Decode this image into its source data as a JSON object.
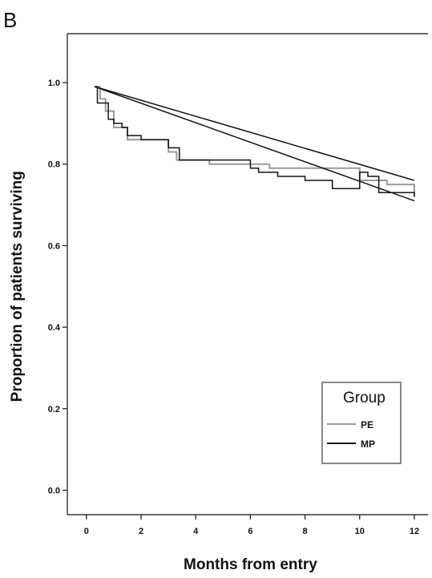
{
  "panel_label": "B",
  "colors": {
    "PE": "#9a9a9a",
    "MP": "#141414",
    "frame": "#111111",
    "legend_box": "#888888"
  },
  "chart_data": {
    "type": "line",
    "title": "",
    "xlabel": "Months from entry",
    "ylabel": "Proportion of patients surviving",
    "xlim": [
      -0.7,
      12.5
    ],
    "ylim": [
      -0.06,
      1.12
    ],
    "xticks": [
      0,
      2,
      4,
      6,
      8,
      10,
      12
    ],
    "xtick_labels": [
      "0",
      "2",
      "4",
      "6",
      "8",
      "10",
      "12"
    ],
    "yticks": [
      0.0,
      0.2,
      0.4,
      0.6,
      0.8,
      1.0
    ],
    "ytick_labels": [
      "0.0",
      "0.2",
      "0.4",
      "0.6",
      "0.8",
      "1.0"
    ],
    "grid": false,
    "legend": {
      "title": "Group",
      "position": "lower-right",
      "entries": [
        "PE",
        "MP"
      ]
    },
    "series": [
      {
        "name": "PE",
        "style": "step",
        "x": [
          0.3,
          0.5,
          0.7,
          1.0,
          1.5,
          3.0,
          3.3,
          4.5,
          6.0,
          6.7,
          10.0,
          11.0,
          12.0
        ],
        "y": [
          0.99,
          0.96,
          0.93,
          0.89,
          0.86,
          0.83,
          0.81,
          0.8,
          0.8,
          0.79,
          0.76,
          0.75,
          0.72
        ]
      },
      {
        "name": "MP",
        "style": "step",
        "x": [
          0.3,
          0.4,
          0.8,
          1.0,
          1.3,
          1.5,
          2.0,
          3.0,
          3.4,
          6.0,
          6.3,
          7.0,
          8.0,
          9.0,
          10.0,
          10.3,
          10.7,
          12.0
        ],
        "y": [
          0.99,
          0.95,
          0.91,
          0.9,
          0.89,
          0.87,
          0.86,
          0.84,
          0.81,
          0.79,
          0.78,
          0.77,
          0.76,
          0.74,
          0.78,
          0.77,
          0.73,
          0.72
        ]
      },
      {
        "name": "",
        "style": "line",
        "x": [
          0.3,
          12.0
        ],
        "y": [
          0.99,
          0.76
        ]
      },
      {
        "name": "",
        "style": "line",
        "x": [
          0.3,
          12.0
        ],
        "y": [
          0.99,
          0.71
        ]
      }
    ]
  }
}
